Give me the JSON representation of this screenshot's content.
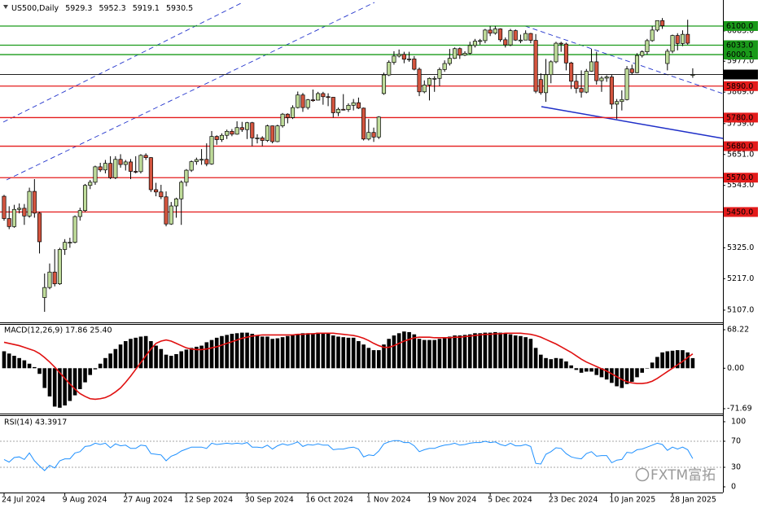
{
  "chart_data": {
    "type": "candlestick",
    "symbol": "US500,Daily",
    "categories": [
      "24 Jul 2024",
      null,
      null,
      null,
      null,
      null,
      null,
      null,
      null,
      null,
      null,
      null,
      "9 Aug 2024",
      null,
      null,
      null,
      null,
      null,
      null,
      null,
      null,
      null,
      null,
      null,
      "27 Aug 2024",
      null,
      null,
      null,
      null,
      null,
      null,
      null,
      null,
      null,
      null,
      null,
      "12 Sep 2024",
      null,
      null,
      null,
      null,
      null,
      null,
      null,
      null,
      null,
      null,
      null,
      "30 Sep 2024",
      null,
      null,
      null,
      null,
      null,
      null,
      null,
      null,
      null,
      null,
      null,
      "16 Oct 2024",
      null,
      null,
      null,
      null,
      null,
      null,
      null,
      null,
      null,
      null,
      null,
      "1 Nov 2024",
      null,
      null,
      null,
      null,
      null,
      null,
      null,
      null,
      null,
      null,
      null,
      "19 Nov 2024",
      null,
      null,
      null,
      null,
      null,
      null,
      null,
      null,
      null,
      null,
      null,
      "5 Dec 2024",
      null,
      null,
      null,
      null,
      null,
      null,
      null,
      null,
      null,
      null,
      null,
      "23 Dec 2024",
      null,
      null,
      null,
      null,
      null,
      null,
      null,
      null,
      null,
      null,
      null,
      "10 Jan 2025",
      null,
      null,
      null,
      null,
      null,
      null,
      null,
      null,
      null,
      null,
      null,
      "28 Jan 2025",
      null,
      null,
      null,
      null
    ],
    "open": [
      5505,
      5427,
      5399,
      5459,
      5463,
      5436,
      5522,
      5446,
      5151,
      5186,
      5240,
      5199,
      5319,
      5344,
      5344,
      5434,
      5455,
      5543,
      5554,
      5608,
      5597,
      5620,
      5570,
      5634,
      5616,
      5625,
      5592,
      5591,
      5648,
      5640,
      5528,
      5520,
      5503,
      5408,
      5471,
      5496,
      5554,
      5596,
      5626,
      5633,
      5634,
      5618,
      5714,
      5703,
      5718,
      5732,
      5722,
      5745,
      5738,
      5762,
      5709,
      5709,
      5700,
      5751,
      5696,
      5751,
      5792,
      5780,
      5815,
      5859,
      5815,
      5842,
      5841,
      5864,
      5853,
      5851,
      5797,
      5809,
      5808,
      5823,
      5832,
      5813,
      5705,
      5728,
      5712,
      5864,
      5929,
      5973,
      5995,
      6001,
      5984,
      5985,
      5949,
      5870,
      5894,
      5917,
      5917,
      5948,
      5969,
      5987,
      6021,
      5998,
      6005,
      6032,
      6047,
      6049,
      6086,
      6075,
      6090,
      6052,
      6034,
      6084,
      6051,
      6051,
      6074,
      6050,
      5913,
      5867,
      5930,
      5975,
      6040,
      6037,
      5971,
      5907,
      5882,
      5869,
      5942,
      5975,
      5909,
      5918,
      5922,
      5827,
      5836,
      5843,
      5950,
      5937,
      5997,
      6010,
      6049,
      6086,
      6119,
      5969,
      6012,
      6067,
      6039,
      6071,
      5929.3
    ],
    "high": [
      5510,
      5470,
      5475,
      5480,
      5478,
      5535,
      5565,
      5450,
      5235,
      5270,
      5320,
      5325,
      5355,
      5360,
      5438,
      5465,
      5548,
      5562,
      5612,
      5622,
      5632,
      5645,
      5645,
      5652,
      5632,
      5635,
      5645,
      5652,
      5655,
      5642,
      5552,
      5545,
      5522,
      5485,
      5500,
      5560,
      5600,
      5630,
      5640,
      5670,
      5690,
      5733,
      5718,
      5725,
      5738,
      5740,
      5767,
      5765,
      5765,
      5765,
      5722,
      5715,
      5755,
      5752,
      5755,
      5796,
      5795,
      5823,
      5871,
      5866,
      5845,
      5878,
      5870,
      5870,
      5865,
      5852,
      5815,
      5862,
      5830,
      5845,
      5850,
      5815,
      5775,
      5745,
      5785,
      5937,
      5980,
      6012,
      6018,
      6010,
      6010,
      5995,
      5955,
      5910,
      5920,
      5925,
      5955,
      5980,
      6020,
      6025,
      6025,
      6012,
      6045,
      6055,
      6055,
      6090,
      6100,
      6100,
      6092,
      6060,
      6090,
      6088,
      6070,
      6085,
      6076,
      6072,
      5935,
      5985,
      5980,
      6045,
      6045,
      6042,
      5975,
      5930,
      5945,
      5950,
      6020,
      6010,
      5925,
      5928,
      5930,
      5845,
      5875,
      5960,
      5965,
      6005,
      6015,
      6055,
      6100,
      6120,
      6128,
      6020,
      6070,
      6075,
      6085,
      6122,
      5952.3
    ],
    "low": [
      5420,
      5390,
      5395,
      5445,
      5405,
      5430,
      5430,
      5305,
      5101,
      5180,
      5190,
      5195,
      5300,
      5325,
      5340,
      5420,
      5450,
      5530,
      5545,
      5590,
      5585,
      5565,
      5565,
      5605,
      5595,
      5565,
      5585,
      5585,
      5632,
      5520,
      5505,
      5495,
      5400,
      5405,
      5430,
      5405,
      5540,
      5590,
      5615,
      5615,
      5610,
      5615,
      5685,
      5695,
      5705,
      5715,
      5720,
      5730,
      5705,
      5680,
      5690,
      5680,
      5695,
      5690,
      5694,
      5745,
      5760,
      5775,
      5812,
      5800,
      5808,
      5835,
      5840,
      5825,
      5820,
      5780,
      5785,
      5805,
      5800,
      5805,
      5810,
      5700,
      5700,
      5695,
      5705,
      5860,
      5925,
      5965,
      5990,
      5970,
      5975,
      5945,
      5855,
      5865,
      5840,
      5870,
      5890,
      5940,
      5962,
      5985,
      5985,
      5995,
      6000,
      6025,
      6035,
      6040,
      6065,
      6070,
      6045,
      6025,
      6030,
      6048,
      6040,
      6050,
      6040,
      5865,
      5860,
      5835,
      5900,
      5970,
      6010,
      5945,
      5880,
      5865,
      5850,
      5865,
      5940,
      5895,
      5870,
      5905,
      5810,
      5775,
      5805,
      5840,
      5930,
      5935,
      5990,
      6000,
      6045,
      6080,
      6090,
      5945,
      6005,
      6015,
      6030,
      6035,
      5919.1
    ],
    "close": [
      5427,
      5399,
      5459,
      5463,
      5436,
      5522,
      5446,
      5346,
      5186,
      5240,
      5199,
      5319,
      5344,
      5344,
      5434,
      5455,
      5543,
      5554,
      5608,
      5597,
      5620,
      5570,
      5634,
      5616,
      5625,
      5592,
      5591,
      5648,
      5640,
      5528,
      5520,
      5503,
      5408,
      5471,
      5496,
      5554,
      5596,
      5626,
      5633,
      5634,
      5618,
      5714,
      5703,
      5718,
      5732,
      5722,
      5745,
      5738,
      5762,
      5709,
      5709,
      5700,
      5751,
      5696,
      5751,
      5792,
      5780,
      5815,
      5859,
      5815,
      5842,
      5841,
      5864,
      5853,
      5851,
      5797,
      5809,
      5808,
      5823,
      5832,
      5813,
      5705,
      5728,
      5712,
      5782,
      5929,
      5973,
      5995,
      6001,
      5984,
      5985,
      5949,
      5870,
      5894,
      5917,
      5917,
      5948,
      5969,
      5987,
      6021,
      5998,
      6005,
      6032,
      6047,
      6049,
      6086,
      6075,
      6090,
      6052,
      6034,
      6084,
      6051,
      6051,
      6074,
      6050,
      5872,
      5867,
      5930,
      5975,
      6040,
      6037,
      5971,
      5907,
      5882,
      5869,
      5942,
      5975,
      5909,
      5918,
      5922,
      5827,
      5836,
      5843,
      5950,
      5937,
      5997,
      6010,
      6049,
      6086,
      6119,
      6101,
      6012,
      6067,
      6039,
      6071,
      6040,
      5930.5
    ],
    "up_color": "#bfdc9a",
    "down_color": "#d4553f",
    "ylim": [
      5067,
      6191
    ],
    "yticks": [
      {
        "value": 6083,
        "label": "6083.0"
      },
      {
        "value": 5977,
        "label": "5977.0"
      },
      {
        "value": 5869,
        "label": "5869.0"
      },
      {
        "value": 5759,
        "label": "5759.0"
      },
      {
        "value": 5651,
        "label": "5651.0"
      },
      {
        "value": 5543,
        "label": "5543.0"
      },
      {
        "value": 5325,
        "label": "5325.0"
      },
      {
        "value": 5217,
        "label": "5217.0"
      },
      {
        "value": 5107,
        "label": "5107.0"
      }
    ],
    "levels": [
      {
        "value": 6100,
        "label": "6100.0",
        "color": "#1a9a1a"
      },
      {
        "value": 6033,
        "label": "6033.0",
        "color": "#1a9a1a"
      },
      {
        "value": 6000.1,
        "label": "6000.1",
        "color": "#1a9a1a"
      },
      {
        "value": 5890,
        "label": "5890.0",
        "color": "#e41b1b"
      },
      {
        "value": 5780,
        "label": "5780.0",
        "color": "#e41b1b"
      },
      {
        "value": 5680,
        "label": "5680.0",
        "color": "#e41b1b"
      },
      {
        "value": 5570,
        "label": "5570.0",
        "color": "#e41b1b"
      },
      {
        "value": 5450,
        "label": "5450.0",
        "color": "#e41b1b"
      }
    ],
    "macd": {
      "title": "MACD(12,26,9) 17.86 25.40",
      "values": [
        30,
        26,
        22,
        18,
        14,
        8,
        2,
        -10,
        -35,
        -50,
        -68,
        -70,
        -66,
        -58,
        -48,
        -37,
        -25,
        -12,
        -2,
        8,
        18,
        26,
        34,
        42,
        48,
        52,
        54,
        56,
        57,
        48,
        40,
        34,
        24,
        22,
        25,
        30,
        33,
        36,
        38,
        40,
        46,
        50,
        54,
        57,
        59,
        61,
        62,
        63,
        63,
        61,
        58,
        56,
        56,
        52,
        53,
        55,
        57,
        59,
        61,
        62,
        62,
        62,
        63,
        62,
        61,
        58,
        56,
        55,
        54,
        54,
        48,
        42,
        36,
        32,
        32,
        42,
        52,
        58,
        62,
        65,
        64,
        60,
        52,
        50,
        50,
        50,
        52,
        54,
        56,
        58,
        58,
        59,
        60,
        62,
        62,
        63,
        63,
        64,
        63,
        61,
        60,
        58,
        57,
        55,
        52,
        36,
        24,
        18,
        16,
        18,
        17,
        12,
        5,
        -3,
        -8,
        -6,
        -6,
        -12,
        -16,
        -20,
        -26,
        -32,
        -35,
        -28,
        -24,
        -16,
        -8,
        0,
        10,
        20,
        28,
        30,
        31,
        32,
        32,
        28,
        17.86
      ],
      "signal": [
        46,
        44,
        42,
        40,
        37,
        34,
        31,
        26,
        19,
        11,
        2,
        -8,
        -18,
        -28,
        -37,
        -45,
        -50,
        -54,
        -55,
        -54,
        -52,
        -48,
        -42,
        -35,
        -25,
        -14,
        -2,
        10,
        22,
        34,
        44,
        48,
        50,
        48,
        44,
        40,
        36,
        34,
        33,
        33,
        34,
        36,
        38,
        41,
        44,
        47,
        50,
        53,
        55,
        57,
        58,
        59,
        59,
        59,
        59,
        59,
        59,
        59,
        60,
        60,
        61,
        61,
        62,
        62,
        62,
        62,
        61,
        60,
        59,
        58,
        56,
        53,
        49,
        44,
        40,
        37,
        37,
        40,
        44,
        48,
        51,
        54,
        55,
        55,
        55,
        54,
        54,
        54,
        54,
        55,
        55,
        56,
        57,
        58,
        59,
        60,
        60,
        61,
        61,
        62,
        62,
        62,
        62,
        61,
        60,
        58,
        55,
        51,
        47,
        43,
        38,
        33,
        28,
        22,
        16,
        11,
        7,
        3,
        -1,
        -5,
        -10,
        -15,
        -20,
        -24,
        -26,
        -27,
        -27,
        -26,
        -23,
        -18,
        -12,
        -6,
        0,
        6,
        12,
        19,
        25.4
      ],
      "color": "#000000",
      "signal_color": "#e01010",
      "ylim": [
        -71.69,
        68.22
      ],
      "yticks": [
        68.22,
        {
          "value": 0,
          "label": "0.00"
        },
        -71.69
      ]
    },
    "rsi": {
      "title": "RSI(14) 43.3917",
      "values": [
        42,
        38,
        45,
        46,
        42,
        52,
        40,
        32,
        25,
        33,
        29,
        40,
        43,
        43,
        52,
        54,
        62,
        63,
        67,
        65,
        67,
        60,
        66,
        63,
        64,
        59,
        59,
        64,
        63,
        51,
        50,
        49,
        40,
        47,
        50,
        55,
        58,
        61,
        61,
        61,
        59,
        67,
        65,
        66,
        67,
        66,
        67,
        66,
        68,
        61,
        61,
        60,
        64,
        58,
        63,
        66,
        64,
        66,
        69,
        62,
        65,
        64,
        66,
        64,
        64,
        57,
        58,
        58,
        60,
        61,
        58,
        46,
        49,
        48,
        55,
        66,
        69,
        71,
        71,
        68,
        68,
        63,
        54,
        57,
        59,
        59,
        62,
        64,
        65,
        67,
        64,
        65,
        67,
        68,
        68,
        70,
        68,
        69,
        65,
        63,
        67,
        63,
        63,
        65,
        62,
        36,
        35,
        50,
        54,
        60,
        59,
        51,
        46,
        44,
        43,
        51,
        54,
        47,
        48,
        48,
        37,
        41,
        42,
        53,
        52,
        57,
        58,
        61,
        64,
        67,
        65,
        56,
        61,
        58,
        61,
        57,
        43.3917
      ],
      "color": "#1e90ff",
      "ylim": [
        0,
        100
      ],
      "yticks": [
        100,
        70,
        30,
        0
      ],
      "levels": [
        70,
        30
      ]
    },
    "watermark": "FXTM富拓"
  }
}
